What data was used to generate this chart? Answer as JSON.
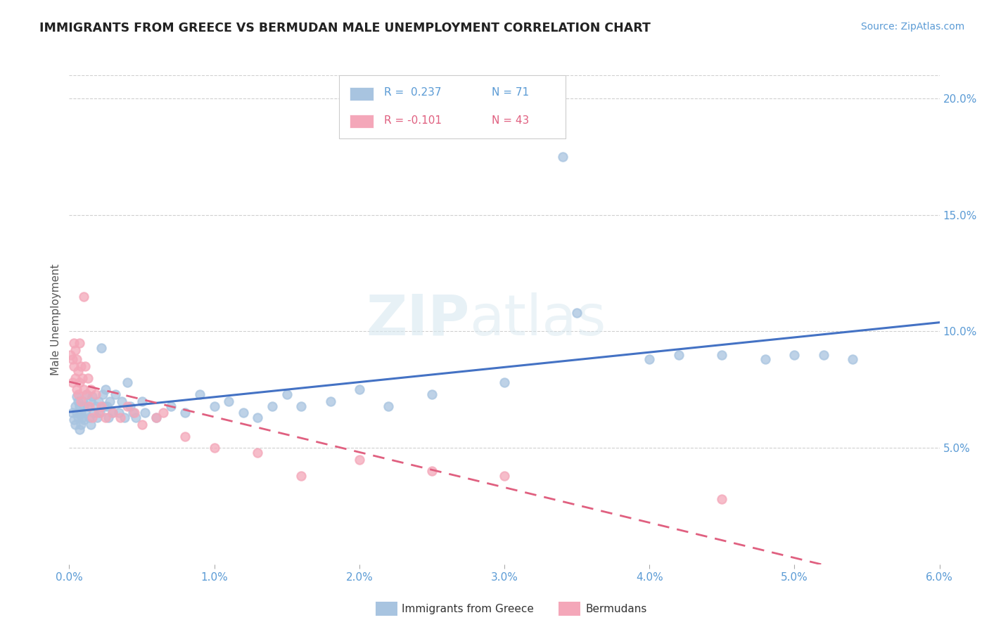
{
  "title": "IMMIGRANTS FROM GREECE VS BERMUDAN MALE UNEMPLOYMENT CORRELATION CHART",
  "source_text": "Source: ZipAtlas.com",
  "ylabel": "Male Unemployment",
  "legend_label_blue": "Immigrants from Greece",
  "legend_label_pink": "Bermudans",
  "legend_r_blue": "R =  0.237",
  "legend_n_blue": "N = 71",
  "legend_r_pink": "R = -0.101",
  "legend_n_pink": "N = 43",
  "xlim": [
    0.0,
    0.06
  ],
  "ylim": [
    0.0,
    0.21
  ],
  "xticks": [
    0.0,
    0.01,
    0.02,
    0.03,
    0.04,
    0.05,
    0.06
  ],
  "yticks_right": [
    0.05,
    0.1,
    0.15,
    0.2
  ],
  "background_color": "#ffffff",
  "grid_color": "#d0d0d0",
  "blue_color": "#a8c4e0",
  "pink_color": "#f4a7b9",
  "line_blue": "#4472c4",
  "line_pink": "#e06080",
  "watermark_zip": "ZIP",
  "watermark_atlas": "atlas",
  "blue_scatter": [
    [
      0.0002,
      0.065
    ],
    [
      0.0003,
      0.062
    ],
    [
      0.0004,
      0.068
    ],
    [
      0.0004,
      0.06
    ],
    [
      0.0005,
      0.072
    ],
    [
      0.0005,
      0.065
    ],
    [
      0.0006,
      0.063
    ],
    [
      0.0006,
      0.07
    ],
    [
      0.0007,
      0.068
    ],
    [
      0.0007,
      0.058
    ],
    [
      0.0008,
      0.065
    ],
    [
      0.0008,
      0.06
    ],
    [
      0.0009,
      0.07
    ],
    [
      0.0009,
      0.063
    ],
    [
      0.001,
      0.068
    ],
    [
      0.001,
      0.062
    ],
    [
      0.0011,
      0.065
    ],
    [
      0.0012,
      0.073
    ],
    [
      0.0013,
      0.068
    ],
    [
      0.0014,
      0.063
    ],
    [
      0.0015,
      0.07
    ],
    [
      0.0015,
      0.06
    ],
    [
      0.0016,
      0.072
    ],
    [
      0.0017,
      0.065
    ],
    [
      0.0018,
      0.068
    ],
    [
      0.0019,
      0.063
    ],
    [
      0.002,
      0.07
    ],
    [
      0.0021,
      0.065
    ],
    [
      0.0022,
      0.093
    ],
    [
      0.0023,
      0.073
    ],
    [
      0.0024,
      0.068
    ],
    [
      0.0025,
      0.075
    ],
    [
      0.0026,
      0.068
    ],
    [
      0.0027,
      0.063
    ],
    [
      0.0028,
      0.07
    ],
    [
      0.003,
      0.065
    ],
    [
      0.0032,
      0.073
    ],
    [
      0.0034,
      0.065
    ],
    [
      0.0036,
      0.07
    ],
    [
      0.0038,
      0.063
    ],
    [
      0.004,
      0.078
    ],
    [
      0.0042,
      0.068
    ],
    [
      0.0044,
      0.065
    ],
    [
      0.0046,
      0.063
    ],
    [
      0.005,
      0.07
    ],
    [
      0.0052,
      0.065
    ],
    [
      0.006,
      0.063
    ],
    [
      0.007,
      0.068
    ],
    [
      0.008,
      0.065
    ],
    [
      0.009,
      0.073
    ],
    [
      0.01,
      0.068
    ],
    [
      0.011,
      0.07
    ],
    [
      0.012,
      0.065
    ],
    [
      0.013,
      0.063
    ],
    [
      0.014,
      0.068
    ],
    [
      0.015,
      0.073
    ],
    [
      0.016,
      0.068
    ],
    [
      0.018,
      0.07
    ],
    [
      0.02,
      0.075
    ],
    [
      0.022,
      0.068
    ],
    [
      0.025,
      0.073
    ],
    [
      0.03,
      0.078
    ],
    [
      0.035,
      0.108
    ],
    [
      0.04,
      0.088
    ],
    [
      0.042,
      0.09
    ],
    [
      0.045,
      0.09
    ],
    [
      0.048,
      0.088
    ],
    [
      0.05,
      0.09
    ],
    [
      0.052,
      0.09
    ],
    [
      0.054,
      0.088
    ],
    [
      0.034,
      0.175
    ]
  ],
  "pink_scatter": [
    [
      0.0001,
      0.09
    ],
    [
      0.0002,
      0.088
    ],
    [
      0.0002,
      0.078
    ],
    [
      0.0003,
      0.095
    ],
    [
      0.0003,
      0.085
    ],
    [
      0.0004,
      0.092
    ],
    [
      0.0004,
      0.08
    ],
    [
      0.0005,
      0.088
    ],
    [
      0.0005,
      0.075
    ],
    [
      0.0006,
      0.083
    ],
    [
      0.0006,
      0.073
    ],
    [
      0.0007,
      0.095
    ],
    [
      0.0007,
      0.078
    ],
    [
      0.0008,
      0.085
    ],
    [
      0.0008,
      0.07
    ],
    [
      0.0009,
      0.08
    ],
    [
      0.001,
      0.075
    ],
    [
      0.001,
      0.115
    ],
    [
      0.0011,
      0.085
    ],
    [
      0.0012,
      0.073
    ],
    [
      0.0013,
      0.08
    ],
    [
      0.0014,
      0.068
    ],
    [
      0.0015,
      0.075
    ],
    [
      0.0016,
      0.063
    ],
    [
      0.0018,
      0.073
    ],
    [
      0.002,
      0.065
    ],
    [
      0.0022,
      0.068
    ],
    [
      0.0025,
      0.063
    ],
    [
      0.003,
      0.065
    ],
    [
      0.0035,
      0.063
    ],
    [
      0.004,
      0.068
    ],
    [
      0.0045,
      0.065
    ],
    [
      0.005,
      0.06
    ],
    [
      0.006,
      0.063
    ],
    [
      0.0065,
      0.065
    ],
    [
      0.008,
      0.055
    ],
    [
      0.01,
      0.05
    ],
    [
      0.013,
      0.048
    ],
    [
      0.016,
      0.038
    ],
    [
      0.02,
      0.045
    ],
    [
      0.025,
      0.04
    ],
    [
      0.03,
      0.038
    ],
    [
      0.045,
      0.028
    ]
  ]
}
